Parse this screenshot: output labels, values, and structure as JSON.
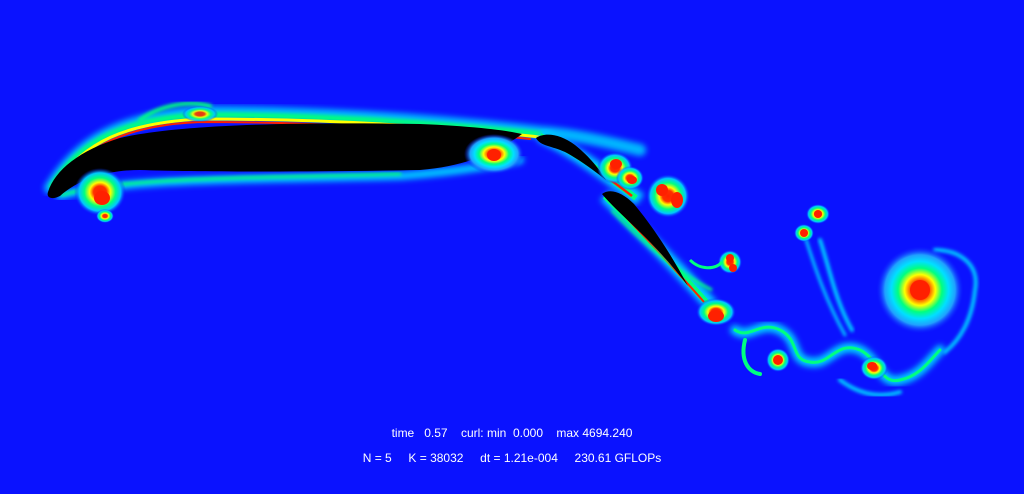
{
  "hud": {
    "time_label": "time",
    "time_value": "0.57",
    "curl_label": "curl: min",
    "curl_min": "0.000",
    "curl_max_label": "max",
    "curl_max": "4694.240",
    "n_label": "N = 5",
    "k_label": "K = 38032",
    "dt_label": "dt = 1.21e-004",
    "gflops": "230.61 GFLOPs"
  },
  "colors": {
    "background": "#0a12ff",
    "body": "#000000",
    "low": "#00c8ff",
    "mid": "#00ff80",
    "high": "#ffff00",
    "peak": "#ff2000"
  }
}
